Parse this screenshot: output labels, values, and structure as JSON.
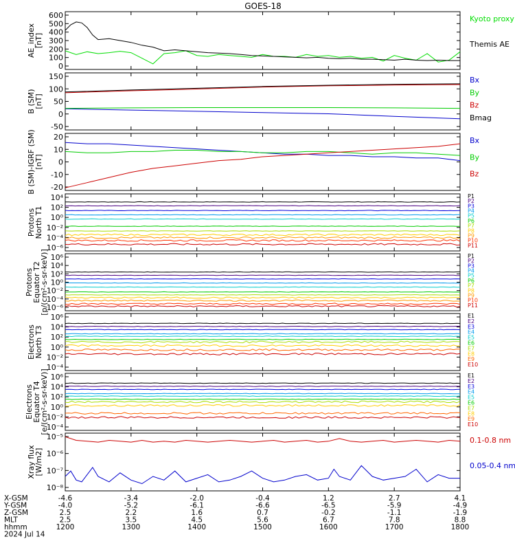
{
  "title": "GOES-18",
  "chart_data": [
    {
      "type": "line",
      "ylabel": [
        "AE_index",
        "[nT]"
      ],
      "y_ticks": [
        "600",
        "500",
        "400",
        "300",
        "200",
        "100",
        "0"
      ],
      "ylim": [
        0,
        620
      ],
      "series": [
        {
          "name": "Kyoto proxy AE",
          "color": "#00dd00",
          "x": [
            1200,
            1210,
            1220,
            1230,
            1240,
            1250,
            1300,
            1310,
            1320,
            1330,
            1340,
            1350,
            1400,
            1410,
            1420,
            1430,
            1440,
            1450,
            1500,
            1510,
            1520,
            1530,
            1540,
            1550,
            1600,
            1610,
            1620,
            1630,
            1640,
            1650,
            1700,
            1710,
            1720,
            1730,
            1740,
            1750,
            1800
          ],
          "y": [
            200,
            160,
            190,
            170,
            180,
            195,
            180,
            120,
            60,
            170,
            180,
            200,
            150,
            140,
            160,
            150,
            140,
            130,
            160,
            140,
            140,
            130,
            160,
            140,
            150,
            130,
            140,
            120,
            130,
            90,
            150,
            120,
            100,
            170,
            80,
            100,
            190
          ]
        },
        {
          "name": "Themis AE",
          "color": "#000000",
          "x": [
            1200,
            1205,
            1210,
            1215,
            1220,
            1225,
            1230,
            1240,
            1250,
            1300,
            1310,
            1320,
            1330,
            1340,
            1350,
            1400,
            1410,
            1420,
            1430,
            1440,
            1450,
            1500,
            1510,
            1520,
            1530,
            1540,
            1550,
            1600,
            1610,
            1620,
            1630,
            1640,
            1650,
            1700,
            1710,
            1720,
            1730,
            1740,
            1750,
            1800
          ],
          "y": [
            420,
            480,
            510,
            500,
            450,
            370,
            320,
            330,
            310,
            290,
            260,
            240,
            200,
            210,
            200,
            190,
            180,
            175,
            170,
            160,
            150,
            145,
            140,
            135,
            130,
            125,
            130,
            120,
            115,
            120,
            110,
            110,
            105,
            100,
            110,
            100,
            95,
            100,
            95,
            95
          ]
        }
      ],
      "legend": [
        "Kyoto proxy AE",
        "Themis AE"
      ]
    },
    {
      "type": "line",
      "ylabel": [
        "B (SM)",
        "[nT]"
      ],
      "y_ticks": [
        "150",
        "100",
        "50",
        "0",
        "-50"
      ],
      "ylim": [
        -65,
        165
      ],
      "series": [
        {
          "name": "Bx",
          "color": "#0000cc",
          "x": [
            1200,
            1300,
            1400,
            1500,
            1600,
            1700,
            1800
          ],
          "y": [
            20,
            15,
            10,
            5,
            0,
            -10,
            -20
          ]
        },
        {
          "name": "By",
          "color": "#00cc00",
          "x": [
            1200,
            1300,
            1400,
            1500,
            1600,
            1700,
            1800
          ],
          "y": [
            22,
            24,
            25,
            25,
            25,
            24,
            22
          ]
        },
        {
          "name": "Bz",
          "color": "#cc0000",
          "x": [
            1200,
            1300,
            1400,
            1500,
            1600,
            1700,
            1800
          ],
          "y": [
            85,
            93,
            100,
            108,
            113,
            116,
            118
          ]
        },
        {
          "name": "Bmag",
          "color": "#000000",
          "x": [
            1200,
            1300,
            1400,
            1500,
            1600,
            1700,
            1800
          ],
          "y": [
            88,
            96,
            103,
            110,
            115,
            119,
            121
          ]
        }
      ],
      "legend": [
        "Bx",
        "By",
        "Bz",
        "Bmag"
      ]
    },
    {
      "type": "line",
      "ylabel": [
        "B (SM)-IGRF (SM)",
        "[nT]"
      ],
      "y_ticks": [
        "20",
        "10",
        "0",
        "-10",
        "-20"
      ],
      "ylim": [
        -22,
        22
      ],
      "series": [
        {
          "name": "Bx",
          "color": "#0000cc",
          "x": [
            1200,
            1220,
            1240,
            1300,
            1320,
            1340,
            1400,
            1420,
            1440,
            1500,
            1520,
            1540,
            1600,
            1620,
            1640,
            1700,
            1720,
            1740,
            1800
          ],
          "y": [
            15,
            14,
            14,
            13,
            12,
            11,
            10,
            9,
            8,
            7,
            6,
            6,
            5,
            5,
            4,
            4,
            3,
            3,
            1
          ]
        },
        {
          "name": "By",
          "color": "#00cc00",
          "x": [
            1200,
            1220,
            1240,
            1300,
            1320,
            1340,
            1400,
            1420,
            1440,
            1500,
            1520,
            1540,
            1600,
            1620,
            1640,
            1700,
            1720,
            1740,
            1800
          ],
          "y": [
            8,
            7,
            7,
            8,
            8,
            9,
            9,
            8,
            8,
            7,
            7,
            8,
            8,
            7,
            6,
            7,
            7,
            6,
            5
          ]
        },
        {
          "name": "Bz",
          "color": "#cc0000",
          "x": [
            1200,
            1220,
            1240,
            1300,
            1320,
            1340,
            1400,
            1420,
            1440,
            1500,
            1520,
            1540,
            1600,
            1620,
            1640,
            1700,
            1720,
            1740,
            1800
          ],
          "y": [
            -20,
            -16,
            -12,
            -8,
            -5,
            -3,
            -1,
            1,
            2,
            4,
            5,
            6,
            7,
            8,
            9,
            10,
            11,
            12,
            14
          ]
        }
      ],
      "legend": [
        "Bx",
        "By",
        "Bz"
      ]
    },
    {
      "type": "line",
      "scale": "log",
      "ylabel": [
        "Protons",
        "North T1"
      ],
      "y_ticks": [
        "10⁴",
        "10²",
        "10⁰",
        "10⁻²",
        "10⁻⁴",
        "10⁻⁶"
      ],
      "ylim_exp": [
        -7,
        5
      ],
      "series": [
        {
          "name": "P1",
          "color": "#000000",
          "level": 3.3
        },
        {
          "name": "P2",
          "color": "#4b0082",
          "level": 2.5
        },
        {
          "name": "P3",
          "color": "#0000dd",
          "level": 1.5
        },
        {
          "name": "P4",
          "color": "#0099ee",
          "level": 0.6
        },
        {
          "name": "P5",
          "color": "#00cccc",
          "level": -0.3
        },
        {
          "name": "P6",
          "color": "#00cc00",
          "level": -1.8
        },
        {
          "name": "P7",
          "color": "#aadd00",
          "level": -2.8
        },
        {
          "name": "P8",
          "color": "#ffcc00",
          "level": -3.6
        },
        {
          "name": "P9",
          "color": "#ff9900",
          "level": -4.2
        },
        {
          "name": "P10",
          "color": "#ff3300",
          "level": -4.8
        },
        {
          "name": "P11",
          "color": "#cc0000",
          "level": -5.6
        }
      ],
      "legend": [
        "P1",
        "P2",
        "P3",
        "P4",
        "P5",
        "P6",
        "P7",
        "P8",
        "P9",
        "P10",
        "P11"
      ]
    },
    {
      "type": "line",
      "scale": "log",
      "ylabel": [
        "Protons",
        "Equator T2",
        "[p/(cm²-s-sr-keV)]"
      ],
      "y_ticks": [
        "10⁶",
        "10⁴",
        "10²",
        "10⁰",
        "10⁻²",
        "10⁻⁴",
        "10⁻⁶"
      ],
      "ylim_exp": [
        -7,
        7
      ],
      "series": [
        {
          "name": "P1",
          "color": "#000000",
          "level": 2.5
        },
        {
          "name": "P2",
          "color": "#4b0082",
          "level": 1.7
        },
        {
          "name": "P3",
          "color": "#0000dd",
          "level": 0.8
        },
        {
          "name": "P4",
          "color": "#0099ee",
          "level": -0.2
        },
        {
          "name": "P5",
          "color": "#00cccc",
          "level": -1.2
        },
        {
          "name": "P6",
          "color": "#00cc00",
          "level": -2.4
        },
        {
          "name": "P7",
          "color": "#aadd00",
          "level": -3.1
        },
        {
          "name": "P8",
          "color": "#ffcc00",
          "level": -3.8
        },
        {
          "name": "P9",
          "color": "#ff9900",
          "level": -4.5
        },
        {
          "name": "P10",
          "color": "#ff3300",
          "level": -5.3
        },
        {
          "name": "P11",
          "color": "#cc0000",
          "level": -5.9
        }
      ],
      "legend": [
        "P1",
        "P2",
        "P3",
        "P4",
        "P5",
        "P6",
        "P7",
        "P8",
        "P9",
        "P10",
        "P11"
      ]
    },
    {
      "type": "line",
      "scale": "log",
      "ylabel": [
        "Electrons",
        "North T3"
      ],
      "y_ticks": [
        "10⁶",
        "10⁴",
        "10²",
        "10⁰",
        "10⁻²",
        "10⁻⁴"
      ],
      "ylim_exp": [
        -4.5,
        6.5
      ],
      "series": [
        {
          "name": "E1",
          "color": "#000000",
          "level": 4.6
        },
        {
          "name": "E2",
          "color": "#4b0082",
          "level": 4.0
        },
        {
          "name": "E3",
          "color": "#0000dd",
          "level": 3.4
        },
        {
          "name": "E4",
          "color": "#0099ee",
          "level": 2.6
        },
        {
          "name": "E5",
          "color": "#00cccc",
          "level": 2.1
        },
        {
          "name": "E6",
          "color": "#00cc00",
          "level": 1.5
        },
        {
          "name": "E7",
          "color": "#aadd00",
          "level": 1.0
        },
        {
          "name": "E8",
          "color": "#ffcc00",
          "level": 0.3
        },
        {
          "name": "E9",
          "color": "#ff6600",
          "level": -0.5
        },
        {
          "name": "E10",
          "color": "#cc0000",
          "level": -1.3
        }
      ],
      "legend": [
        "E1",
        "E2",
        "E3",
        "E4",
        "E5",
        "E6",
        "E7",
        "E8",
        "E9",
        "E10"
      ]
    },
    {
      "type": "line",
      "scale": "log",
      "ylabel": [
        "Electrons",
        "Equator T4",
        "[e/(cm²-s-sr-keV)]"
      ],
      "y_ticks": [
        "10⁶",
        "10⁴",
        "10²",
        "10⁰",
        "10⁻²",
        "10⁻⁴"
      ],
      "ylim_exp": [
        -4.5,
        6.5
      ],
      "series": [
        {
          "name": "E1",
          "color": "#000000",
          "level": 4.6
        },
        {
          "name": "E2",
          "color": "#4b0082",
          "level": 4.0
        },
        {
          "name": "E3",
          "color": "#0000dd",
          "level": 3.4
        },
        {
          "name": "E4",
          "color": "#0099ee",
          "level": 2.6
        },
        {
          "name": "E5",
          "color": "#00cccc",
          "level": 2.1
        },
        {
          "name": "E6",
          "color": "#00cc00",
          "level": 1.5
        },
        {
          "name": "E7",
          "color": "#aadd00",
          "level": 1.0
        },
        {
          "name": "E8",
          "color": "#ffcc00",
          "level": 0.3
        },
        {
          "name": "E9",
          "color": "#ff6600",
          "level": -1.2
        },
        {
          "name": "E10",
          "color": "#cc0000",
          "level": -2.0
        }
      ],
      "legend": [
        "E1",
        "E2",
        "E3",
        "E4",
        "E5",
        "E6",
        "E7",
        "E8",
        "E9",
        "E10"
      ]
    },
    {
      "type": "line",
      "scale": "log",
      "ylabel": [
        "Xray flux",
        "[W/m2]"
      ],
      "y_ticks": [
        "10⁻⁵",
        "10⁻⁶",
        "10⁻⁷",
        "10⁻⁸"
      ],
      "ylim_exp": [
        -8.1,
        -4.9
      ],
      "series": [
        {
          "name": "0.1-0.8 nm",
          "color": "#cc0000",
          "x": [
            1200,
            1210,
            1220,
            1230,
            1240,
            1250,
            1300,
            1310,
            1320,
            1330,
            1340,
            1350,
            1400,
            1410,
            1420,
            1430,
            1440,
            1450,
            1500,
            1510,
            1520,
            1530,
            1540,
            1550,
            1600,
            1610,
            1620,
            1630,
            1640,
            1650,
            1700,
            1710,
            1720,
            1730,
            1740,
            1750,
            1800
          ],
          "y": [
            -5.1,
            -5.3,
            -5.35,
            -5.4,
            -5.3,
            -5.35,
            -5.4,
            -5.3,
            -5.4,
            -5.35,
            -5.4,
            -5.3,
            -5.35,
            -5.4,
            -5.35,
            -5.3,
            -5.35,
            -5.4,
            -5.35,
            -5.3,
            -5.4,
            -5.35,
            -5.3,
            -5.4,
            -5.35,
            -5.2,
            -5.35,
            -5.4,
            -5.35,
            -5.3,
            -5.4,
            -5.35,
            -5.3,
            -5.35,
            -5.4,
            -5.3,
            -5.35
          ]
        },
        {
          "name": "0.05-0.4 nm",
          "color": "#0000cc",
          "x": [
            1200,
            1205,
            1210,
            1215,
            1220,
            1225,
            1230,
            1240,
            1250,
            1300,
            1310,
            1320,
            1330,
            1340,
            1350,
            1400,
            1410,
            1420,
            1430,
            1440,
            1450,
            1500,
            1510,
            1520,
            1530,
            1540,
            1550,
            1600,
            1605,
            1610,
            1620,
            1630,
            1640,
            1650,
            1700,
            1710,
            1720,
            1730,
            1740,
            1750,
            1800
          ],
          "y": [
            -7.3,
            -7.0,
            -7.5,
            -7.6,
            -7.2,
            -6.8,
            -7.3,
            -7.6,
            -7.1,
            -7.5,
            -7.7,
            -7.3,
            -7.5,
            -7.0,
            -7.6,
            -7.4,
            -7.2,
            -7.6,
            -7.5,
            -7.3,
            -7.0,
            -7.4,
            -7.6,
            -7.5,
            -7.3,
            -7.2,
            -7.5,
            -7.4,
            -6.9,
            -7.3,
            -7.5,
            -6.7,
            -7.3,
            -7.5,
            -7.4,
            -7.3,
            -6.9,
            -7.6,
            -7.2,
            -7.4,
            -7.4
          ]
        }
      ],
      "legend": [
        "0.1-0.8 nm",
        "0.05-0.4 nm"
      ]
    }
  ],
  "x_axis": {
    "ticks": [
      1200,
      1300,
      1400,
      1500,
      1600,
      1700,
      1800
    ],
    "xlim": [
      1200,
      1800
    ],
    "rows": [
      {
        "label": "X-GSM",
        "values": [
          "-4.6",
          "-3.4",
          "-2.0",
          "-0.4",
          "1.2",
          "2.7",
          "4.1"
        ]
      },
      {
        "label": "Y-GSM",
        "values": [
          "-4.0",
          "-5.2",
          "-6.1",
          "-6.6",
          "-6.5",
          "-5.9",
          "-4.9"
        ]
      },
      {
        "label": "Z-GSM",
        "values": [
          "2.5",
          "2.2",
          "1.6",
          "0.7",
          "-0.2",
          "-1.1",
          "-1.9"
        ]
      },
      {
        "label": "MLT",
        "values": [
          "2.5",
          "3.5",
          "4.5",
          "5.6",
          "6.7",
          "7.8",
          "8.8"
        ]
      },
      {
        "label": "hhmm",
        "values": [
          "1200",
          "1300",
          "1400",
          "1500",
          "1600",
          "1700",
          "1800"
        ]
      }
    ],
    "date": "2024 Jul 14"
  }
}
